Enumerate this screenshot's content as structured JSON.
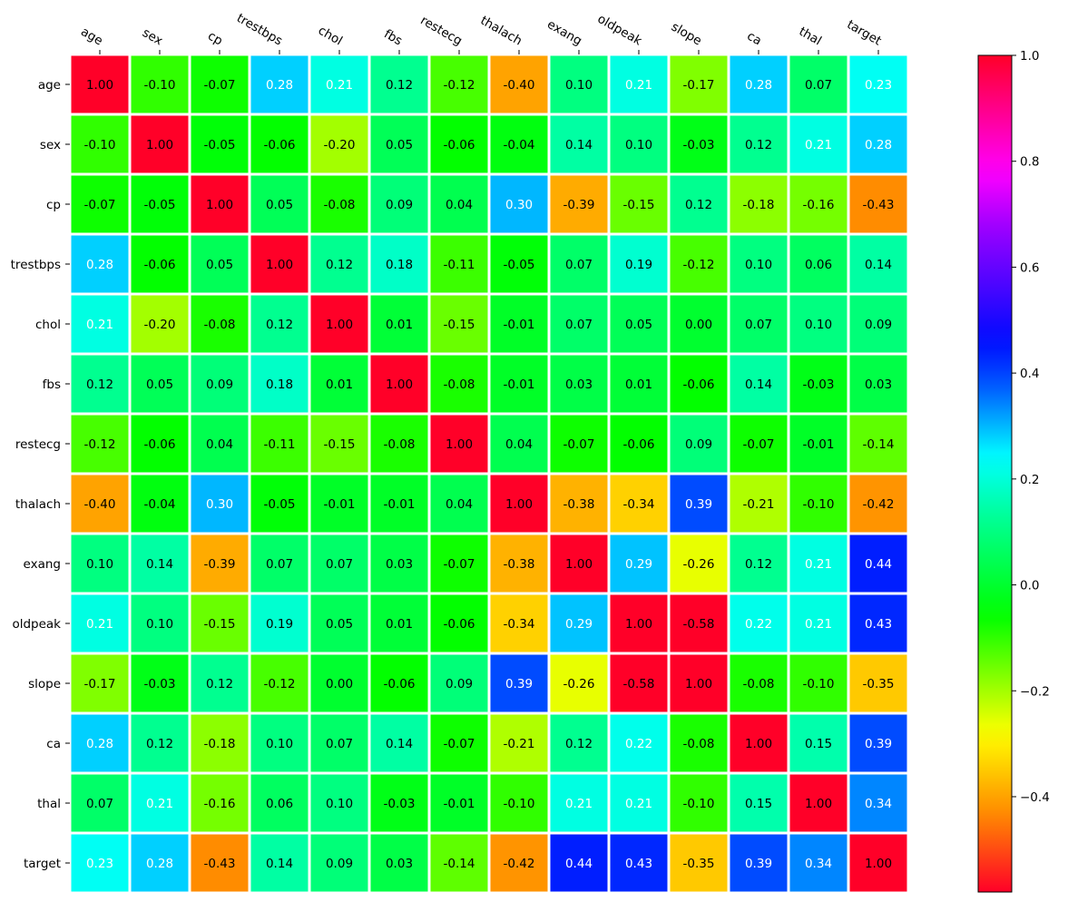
{
  "chart_data": {
    "type": "heatmap",
    "title": "",
    "xlabel": "",
    "ylabel": "",
    "labels": [
      "age",
      "sex",
      "cp",
      "trestbps",
      "chol",
      "fbs",
      "restecg",
      "thalach",
      "exang",
      "oldpeak",
      "slope",
      "ca",
      "thal",
      "target"
    ],
    "values": [
      [
        1.0,
        -0.1,
        -0.07,
        0.28,
        0.21,
        0.12,
        -0.12,
        -0.4,
        0.1,
        0.21,
        -0.17,
        0.28,
        0.07,
        0.23
      ],
      [
        -0.1,
        1.0,
        -0.05,
        -0.06,
        -0.2,
        0.05,
        -0.06,
        -0.04,
        0.14,
        0.1,
        -0.03,
        0.12,
        0.21,
        0.28
      ],
      [
        -0.07,
        -0.05,
        1.0,
        0.05,
        -0.08,
        0.09,
        0.04,
        0.3,
        -0.39,
        -0.15,
        0.12,
        -0.18,
        -0.16,
        -0.43
      ],
      [
        0.28,
        -0.06,
        0.05,
        1.0,
        0.12,
        0.18,
        -0.11,
        -0.05,
        0.07,
        0.19,
        -0.12,
        0.1,
        0.06,
        0.14
      ],
      [
        0.21,
        -0.2,
        -0.08,
        0.12,
        1.0,
        0.01,
        -0.15,
        -0.01,
        0.07,
        0.05,
        -0.0,
        0.07,
        0.1,
        0.09
      ],
      [
        0.12,
        0.05,
        0.09,
        0.18,
        0.01,
        1.0,
        -0.08,
        -0.01,
        0.03,
        0.01,
        -0.06,
        0.14,
        -0.03,
        0.03
      ],
      [
        -0.12,
        -0.06,
        0.04,
        -0.11,
        -0.15,
        -0.08,
        1.0,
        0.04,
        -0.07,
        -0.06,
        0.09,
        -0.07,
        -0.01,
        -0.14
      ],
      [
        -0.4,
        -0.04,
        0.3,
        -0.05,
        -0.01,
        -0.01,
        0.04,
        1.0,
        -0.38,
        -0.34,
        0.39,
        -0.21,
        -0.1,
        -0.42
      ],
      [
        0.1,
        0.14,
        -0.39,
        0.07,
        0.07,
        0.03,
        -0.07,
        -0.38,
        1.0,
        0.29,
        -0.26,
        0.12,
        0.21,
        0.44
      ],
      [
        0.21,
        0.1,
        -0.15,
        0.19,
        0.05,
        0.01,
        -0.06,
        -0.34,
        0.29,
        1.0,
        -0.58,
        0.22,
        0.21,
        0.43
      ],
      [
        -0.17,
        -0.03,
        0.12,
        -0.12,
        -0.0,
        -0.06,
        0.09,
        0.39,
        -0.26,
        -0.58,
        1.0,
        -0.08,
        -0.1,
        -0.35
      ],
      [
        0.28,
        0.12,
        -0.18,
        0.1,
        0.07,
        0.14,
        -0.07,
        -0.21,
        0.12,
        0.22,
        -0.08,
        1.0,
        0.15,
        0.39
      ],
      [
        0.07,
        0.21,
        -0.16,
        0.06,
        0.1,
        -0.03,
        -0.01,
        -0.1,
        0.21,
        0.21,
        -0.1,
        0.15,
        1.0,
        0.34
      ],
      [
        0.23,
        0.28,
        -0.43,
        0.14,
        0.09,
        0.03,
        -0.14,
        -0.42,
        0.44,
        0.43,
        -0.35,
        0.39,
        0.34,
        1.0
      ]
    ],
    "value_format": "2 decimals",
    "colormap": "gist_rainbow_r",
    "vmin": -0.58,
    "vmax": 1.0,
    "annotate": true,
    "colorbar": {
      "position": "right",
      "ticks": [
        -0.4,
        -0.2,
        0.0,
        0.2,
        0.4,
        0.6,
        0.8,
        1.0
      ],
      "tick_labels": [
        "−0.4",
        "−0.2",
        "0.0",
        "0.2",
        "0.4",
        "0.6",
        "0.8",
        "1.0"
      ]
    },
    "x_tick_position": "top",
    "x_tick_rotation": "rotated",
    "cell_border_color": "#ffffff"
  }
}
